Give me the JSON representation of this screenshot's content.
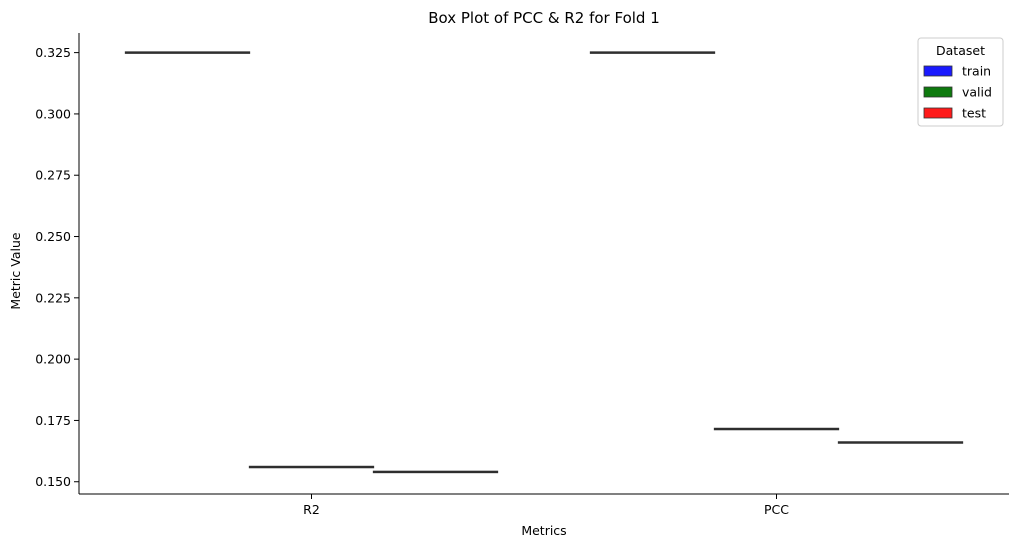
{
  "chart_data": {
    "type": "box",
    "title": "Box Plot of PCC & R2 for Fold 1",
    "xlabel": "Metrics",
    "ylabel": "Metric Value",
    "categories": [
      "R2",
      "PCC"
    ],
    "ylim": [
      0.145,
      0.333
    ],
    "yticks": [
      0.15,
      0.175,
      0.2,
      0.225,
      0.25,
      0.275,
      0.3,
      0.325
    ],
    "ytick_labels": [
      "0.150",
      "0.175",
      "0.200",
      "0.225",
      "0.250",
      "0.275",
      "0.300",
      "0.325"
    ],
    "grid": false,
    "legend": {
      "title": "Dataset",
      "placement": "top-right"
    },
    "series": [
      {
        "name": "train",
        "color": "#1a1aff",
        "values": [
          0.325,
          0.325
        ]
      },
      {
        "name": "valid",
        "color": "#0e7a0e",
        "values": [
          0.156,
          0.1715
        ]
      },
      {
        "name": "test",
        "color": "#ff1a1a",
        "values": [
          0.154,
          0.166
        ]
      }
    ],
    "box_line_color": "#2f2f2f"
  }
}
